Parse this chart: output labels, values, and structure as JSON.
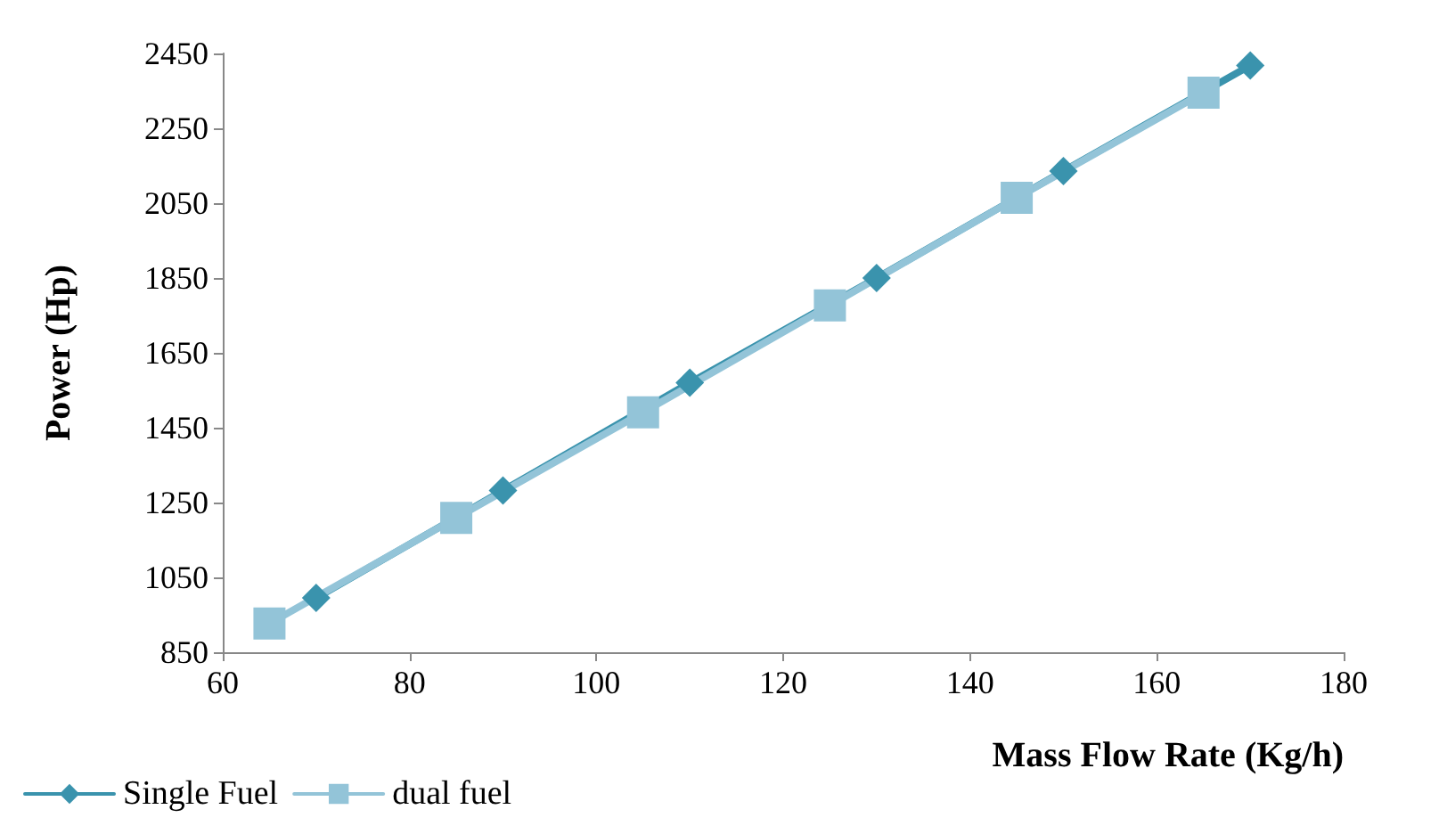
{
  "chart_data": {
    "type": "line",
    "xlabel": "Mass Flow Rate (Kg/h)",
    "ylabel": "Power (Hp)",
    "xlim": [
      60,
      180
    ],
    "xticks": [
      60,
      80,
      100,
      120,
      140,
      160,
      180
    ],
    "ylim": [
      850,
      2450
    ],
    "yticks": [
      850,
      1050,
      1250,
      1450,
      1650,
      1850,
      2050,
      2250,
      2450
    ],
    "grid": false,
    "legend": "bottom left",
    "series": [
      {
        "name": "Single Fuel",
        "color": "#3a93ad",
        "marker": "diamond",
        "x": [
          70,
          90,
          110,
          130,
          150,
          170
        ],
        "values": [
          995,
          1282,
          1570,
          1850,
          2136,
          2418
        ]
      },
      {
        "name": "dual fuel",
        "color": "#93c4d8",
        "marker": "square",
        "x": [
          65,
          85,
          105,
          125,
          145,
          165
        ],
        "values": [
          927,
          1209,
          1491,
          1777,
          2064,
          2345
        ]
      }
    ]
  }
}
